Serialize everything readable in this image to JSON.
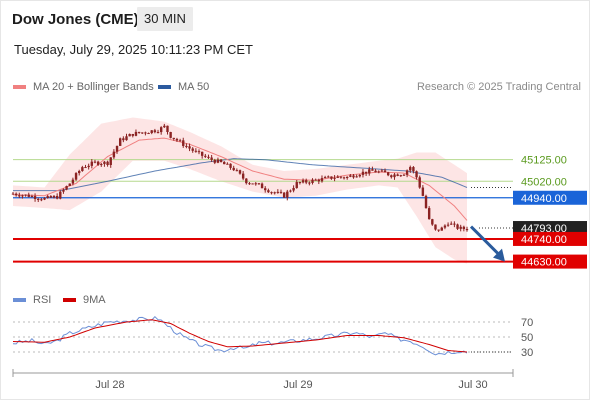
{
  "header": {
    "title": "Dow Jones (CME)",
    "timeframe": "30 MIN",
    "timestamp": "Tuesday, July 29, 2025 10:11:23 PM CET"
  },
  "legend": {
    "ma20_label": "MA 20 + Bollinger Bands",
    "ma50_label": "MA 50",
    "credit": "Research © 2025 Trading Central"
  },
  "rsi_legend": {
    "rsi_label": "RSI",
    "ma_label": "9MA"
  },
  "colors": {
    "ma20": "#f08080",
    "ma50": "#2b5a9f",
    "bollinger_fill": "#fde2e2",
    "candle": "#8b2323",
    "resistance_green": "#b5d98e",
    "support_red": "#e00000",
    "pivot_blue": "#1a64d8",
    "current_price_bg": "#222222",
    "arrow": "#2a5b9c",
    "rsi_line": "#6b8fd6",
    "rsi_ma": "#d00000"
  },
  "chart_data": [
    {
      "type": "candlestick",
      "x_labels": [
        "Jul 28",
        "Jul 29",
        "Jul 30"
      ],
      "y_range": [
        44560,
        45410
      ],
      "levels": [
        {
          "label": "45125.00",
          "value": 45125,
          "kind": "resistance"
        },
        {
          "label": "45020.00",
          "value": 45020,
          "kind": "resistance"
        },
        {
          "label": "44940.00",
          "value": 44940,
          "kind": "pivot"
        },
        {
          "label": "44793.00",
          "value": 44793,
          "kind": "current_price"
        },
        {
          "label": "44740.00",
          "value": 44740,
          "kind": "support"
        },
        {
          "label": "44630.00",
          "value": 44630,
          "kind": "support"
        }
      ],
      "anchors": [
        [
          0,
          44960
        ],
        [
          5,
          44950
        ],
        [
          10,
          44935
        ],
        [
          14,
          44945
        ],
        [
          18,
          45010
        ],
        [
          22,
          45090
        ],
        [
          26,
          45110
        ],
        [
          30,
          45110
        ],
        [
          34,
          45220
        ],
        [
          38,
          45250
        ],
        [
          42,
          45260
        ],
        [
          46,
          45270
        ],
        [
          48,
          45285
        ],
        [
          50,
          45240
        ],
        [
          54,
          45200
        ],
        [
          58,
          45160
        ],
        [
          62,
          45130
        ],
        [
          66,
          45110
        ],
        [
          70,
          45080
        ],
        [
          74,
          45020
        ],
        [
          78,
          45000
        ],
        [
          82,
          44970
        ],
        [
          86,
          44950
        ],
        [
          90,
          45010
        ],
        [
          94,
          45020
        ],
        [
          98,
          45030
        ],
        [
          102,
          45040
        ],
        [
          106,
          45040
        ],
        [
          110,
          45060
        ],
        [
          114,
          45070
        ],
        [
          118,
          45060
        ],
        [
          120,
          45050
        ],
        [
          124,
          45060
        ],
        [
          126,
          45090
        ],
        [
          128,
          45040
        ],
        [
          130,
          44950
        ],
        [
          132,
          44830
        ],
        [
          134,
          44780
        ],
        [
          136,
          44790
        ],
        [
          138,
          44820
        ],
        [
          140,
          44800
        ],
        [
          142,
          44790
        ],
        [
          144,
          44790
        ]
      ],
      "ma20": [
        [
          0,
          44955
        ],
        [
          10,
          44950
        ],
        [
          20,
          45010
        ],
        [
          30,
          45140
        ],
        [
          40,
          45220
        ],
        [
          48,
          45230
        ],
        [
          56,
          45200
        ],
        [
          66,
          45140
        ],
        [
          76,
          45070
        ],
        [
          86,
          45030
        ],
        [
          96,
          45025
        ],
        [
          106,
          45050
        ],
        [
          116,
          45065
        ],
        [
          124,
          45060
        ],
        [
          132,
          45000
        ],
        [
          140,
          44900
        ],
        [
          144,
          44830
        ]
      ],
      "ma50": [
        [
          0,
          44975
        ],
        [
          15,
          44975
        ],
        [
          30,
          45020
        ],
        [
          45,
          45070
        ],
        [
          60,
          45110
        ],
        [
          70,
          45130
        ],
        [
          80,
          45125
        ],
        [
          95,
          45100
        ],
        [
          110,
          45085
        ],
        [
          125,
          45070
        ],
        [
          136,
          45040
        ],
        [
          144,
          44990
        ]
      ],
      "bollinger_upper": [
        [
          0,
          45000
        ],
        [
          10,
          44990
        ],
        [
          18,
          45150
        ],
        [
          28,
          45300
        ],
        [
          38,
          45330
        ],
        [
          48,
          45310
        ],
        [
          56,
          45260
        ],
        [
          66,
          45190
        ],
        [
          76,
          45100
        ],
        [
          86,
          45070
        ],
        [
          96,
          45080
        ],
        [
          106,
          45100
        ],
        [
          116,
          45120
        ],
        [
          122,
          45130
        ],
        [
          128,
          45160
        ],
        [
          134,
          45160
        ],
        [
          140,
          45100
        ],
        [
          144,
          45060
        ]
      ],
      "bollinger_lower": [
        [
          0,
          44900
        ],
        [
          10,
          44890
        ],
        [
          18,
          44880
        ],
        [
          28,
          44970
        ],
        [
          38,
          45120
        ],
        [
          48,
          45120
        ],
        [
          56,
          45080
        ],
        [
          66,
          45020
        ],
        [
          76,
          44970
        ],
        [
          86,
          44940
        ],
        [
          96,
          44950
        ],
        [
          106,
          44980
        ],
        [
          116,
          45000
        ],
        [
          122,
          44990
        ],
        [
          128,
          44850
        ],
        [
          134,
          44700
        ],
        [
          140,
          44640
        ],
        [
          144,
          44620
        ]
      ],
      "forecast_arrow": {
        "from_value": 44800,
        "to_value": 44630
      }
    },
    {
      "type": "line",
      "title": "RSI",
      "y_ticks": [
        70,
        50,
        30
      ],
      "y_range": [
        10,
        82
      ],
      "rsi": [
        [
          0,
          42
        ],
        [
          6,
          45
        ],
        [
          10,
          40
        ],
        [
          14,
          45
        ],
        [
          18,
          55
        ],
        [
          22,
          60
        ],
        [
          26,
          65
        ],
        [
          30,
          70
        ],
        [
          36,
          72
        ],
        [
          42,
          74
        ],
        [
          46,
          75
        ],
        [
          50,
          62
        ],
        [
          54,
          50
        ],
        [
          58,
          42
        ],
        [
          62,
          36
        ],
        [
          66,
          32
        ],
        [
          70,
          36
        ],
        [
          74,
          35
        ],
        [
          78,
          42
        ],
        [
          84,
          42
        ],
        [
          90,
          45
        ],
        [
          96,
          48
        ],
        [
          102,
          52
        ],
        [
          108,
          56
        ],
        [
          114,
          50
        ],
        [
          118,
          55
        ],
        [
          122,
          48
        ],
        [
          126,
          45
        ],
        [
          130,
          38
        ],
        [
          134,
          28
        ],
        [
          138,
          30
        ],
        [
          142,
          32
        ],
        [
          144,
          30
        ]
      ],
      "rsi_ma": [
        [
          0,
          44
        ],
        [
          10,
          43
        ],
        [
          18,
          50
        ],
        [
          26,
          62
        ],
        [
          36,
          70
        ],
        [
          44,
          73
        ],
        [
          50,
          68
        ],
        [
          56,
          55
        ],
        [
          62,
          44
        ],
        [
          68,
          37
        ],
        [
          76,
          38
        ],
        [
          86,
          42
        ],
        [
          96,
          46
        ],
        [
          106,
          52
        ],
        [
          116,
          52
        ],
        [
          124,
          49
        ],
        [
          132,
          40
        ],
        [
          138,
          32
        ],
        [
          144,
          30
        ]
      ]
    }
  ]
}
